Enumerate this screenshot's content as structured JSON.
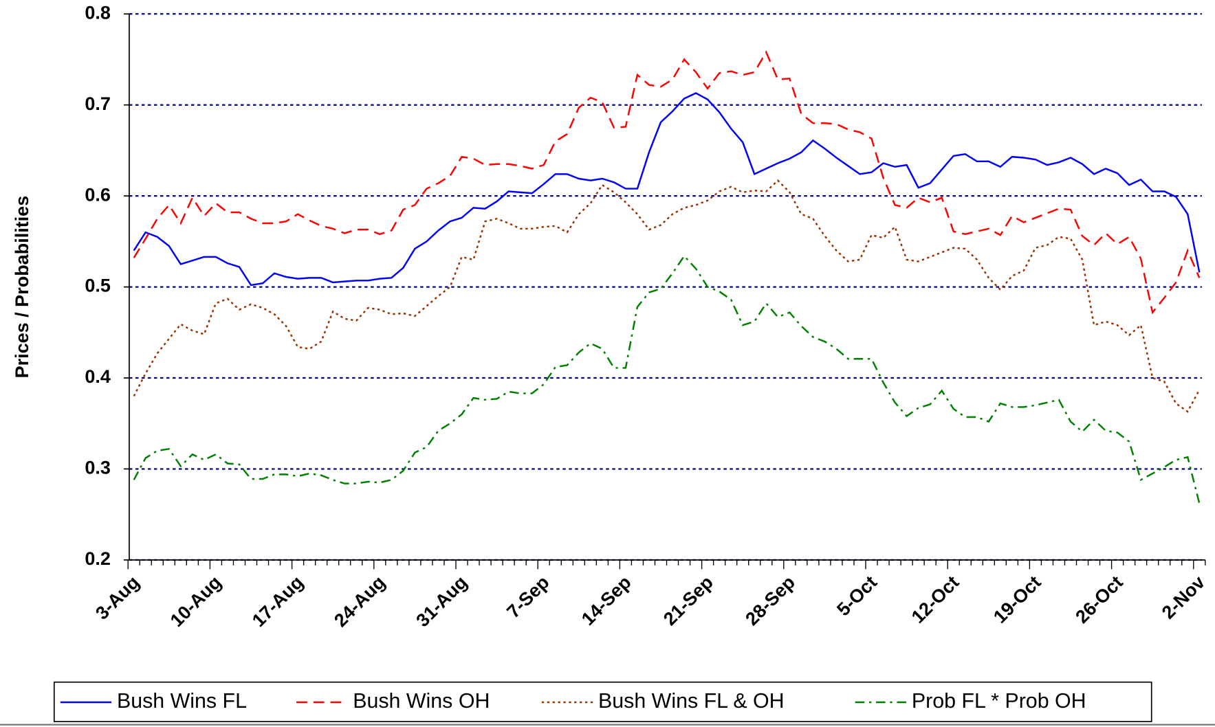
{
  "chart_data": {
    "type": "line",
    "y_label": "Prices / Probabilities",
    "categories": [
      "3-Aug",
      null,
      null,
      null,
      null,
      null,
      null,
      "10-Aug",
      null,
      null,
      null,
      null,
      null,
      null,
      "17-Aug",
      null,
      null,
      null,
      null,
      null,
      null,
      "24-Aug",
      null,
      null,
      null,
      null,
      null,
      null,
      "31-Aug",
      null,
      null,
      null,
      null,
      null,
      null,
      "7-Sep",
      null,
      null,
      null,
      null,
      null,
      null,
      "14-Sep",
      null,
      null,
      null,
      null,
      null,
      null,
      "21-Sep",
      null,
      null,
      null,
      null,
      null,
      null,
      "28-Sep",
      null,
      null,
      null,
      null,
      null,
      null,
      "5-Oct",
      null,
      null,
      null,
      null,
      null,
      null,
      "12-Oct",
      null,
      null,
      null,
      null,
      null,
      null,
      "19-Oct",
      null,
      null,
      null,
      null,
      null,
      null,
      "26-Oct",
      null,
      null,
      null,
      null,
      null,
      null,
      "2-Nov"
    ],
    "ylim": [
      0.2,
      0.8
    ],
    "yticks": [
      0.2,
      0.3,
      0.4,
      0.5,
      0.6,
      0.7,
      0.8
    ],
    "grid": true,
    "legend": "bottom",
    "series": [
      {
        "name": "Bush Wins FL",
        "color": "#0000ff",
        "dash": "solid",
        "values": [
          0.54,
          0.56,
          0.555,
          0.545,
          0.525,
          0.529,
          0.533,
          0.533,
          0.526,
          0.522,
          0.502,
          0.504,
          0.515,
          0.511,
          0.509,
          0.51,
          0.51,
          0.505,
          0.506,
          0.507,
          0.507,
          0.509,
          0.51,
          0.521,
          0.542,
          0.55,
          0.562,
          0.572,
          0.576,
          0.587,
          0.586,
          0.594,
          0.605,
          0.604,
          0.603,
          0.613,
          0.624,
          0.624,
          0.619,
          0.617,
          0.619,
          0.615,
          0.608,
          0.608,
          0.648,
          0.681,
          0.693,
          0.707,
          0.713,
          0.706,
          0.692,
          0.674,
          0.659,
          0.624,
          0.63,
          0.636,
          0.641,
          0.648,
          0.661,
          0.652,
          0.642,
          0.633,
          0.624,
          0.626,
          0.636,
          0.632,
          0.634,
          0.609,
          0.614,
          0.629,
          0.644,
          0.646,
          0.638,
          0.638,
          0.632,
          0.643,
          0.642,
          0.64,
          0.634,
          0.637,
          0.642,
          0.635,
          0.624,
          0.63,
          0.625,
          0.612,
          0.618,
          0.605,
          0.605,
          0.599,
          0.58,
          0.516
        ]
      },
      {
        "name": "Bush Wins OH",
        "color": "#ff0000",
        "dash": "dashed",
        "values": [
          0.532,
          0.553,
          0.575,
          0.59,
          0.57,
          0.598,
          0.578,
          0.592,
          0.582,
          0.582,
          0.575,
          0.57,
          0.57,
          0.572,
          0.58,
          0.573,
          0.567,
          0.564,
          0.559,
          0.563,
          0.563,
          0.558,
          0.562,
          0.585,
          0.59,
          0.608,
          0.614,
          0.622,
          0.643,
          0.641,
          0.634,
          0.635,
          0.635,
          0.633,
          0.63,
          0.634,
          0.66,
          0.668,
          0.697,
          0.708,
          0.703,
          0.675,
          0.676,
          0.733,
          0.722,
          0.72,
          0.728,
          0.75,
          0.736,
          0.718,
          0.735,
          0.737,
          0.733,
          0.736,
          0.758,
          0.728,
          0.729,
          0.69,
          0.68,
          0.68,
          0.679,
          0.673,
          0.67,
          0.663,
          0.62,
          0.59,
          0.587,
          0.598,
          0.593,
          0.598,
          0.561,
          0.558,
          0.561,
          0.564,
          0.557,
          0.578,
          0.571,
          0.576,
          0.581,
          0.586,
          0.585,
          0.556,
          0.546,
          0.559,
          0.547,
          0.555,
          0.531,
          0.472,
          0.488,
          0.505,
          0.54,
          0.51
        ]
      },
      {
        "name": "Bush Wins FL & OH",
        "color": "#993300",
        "dash": "dotted",
        "values": [
          0.38,
          0.405,
          0.427,
          0.443,
          0.459,
          0.452,
          0.448,
          0.482,
          0.487,
          0.475,
          0.481,
          0.477,
          0.47,
          0.457,
          0.434,
          0.432,
          0.44,
          0.473,
          0.465,
          0.463,
          0.477,
          0.475,
          0.47,
          0.471,
          0.468,
          0.479,
          0.49,
          0.5,
          0.533,
          0.53,
          0.572,
          0.575,
          0.57,
          0.564,
          0.564,
          0.566,
          0.567,
          0.56,
          0.58,
          0.592,
          0.612,
          0.604,
          0.593,
          0.58,
          0.563,
          0.568,
          0.58,
          0.587,
          0.59,
          0.595,
          0.605,
          0.61,
          0.604,
          0.606,
          0.605,
          0.617,
          0.604,
          0.58,
          0.575,
          0.556,
          0.54,
          0.528,
          0.53,
          0.557,
          0.554,
          0.566,
          0.53,
          0.528,
          0.533,
          0.538,
          0.543,
          0.542,
          0.53,
          0.51,
          0.497,
          0.512,
          0.518,
          0.543,
          0.546,
          0.555,
          0.553,
          0.53,
          0.458,
          0.462,
          0.458,
          0.447,
          0.458,
          0.4,
          0.396,
          0.372,
          0.363,
          0.387
        ]
      },
      {
        "name": "Prob FL * Prob OH",
        "color": "#008000",
        "dash": "dashdot",
        "values": [
          0.288,
          0.312,
          0.32,
          0.322,
          0.303,
          0.316,
          0.31,
          0.316,
          0.306,
          0.305,
          0.289,
          0.289,
          0.294,
          0.294,
          0.292,
          0.295,
          0.293,
          0.288,
          0.284,
          0.284,
          0.286,
          0.285,
          0.288,
          0.298,
          0.318,
          0.324,
          0.342,
          0.35,
          0.36,
          0.378,
          0.376,
          0.377,
          0.385,
          0.383,
          0.383,
          0.393,
          0.412,
          0.414,
          0.428,
          0.438,
          0.432,
          0.411,
          0.411,
          0.478,
          0.494,
          0.498,
          0.515,
          0.534,
          0.52,
          0.5,
          0.495,
          0.486,
          0.458,
          0.462,
          0.482,
          0.467,
          0.472,
          0.457,
          0.445,
          0.44,
          0.432,
          0.421,
          0.421,
          0.421,
          0.395,
          0.373,
          0.358,
          0.367,
          0.371,
          0.386,
          0.366,
          0.357,
          0.357,
          0.352,
          0.372,
          0.368,
          0.368,
          0.37,
          0.373,
          0.376,
          0.352,
          0.341,
          0.354,
          0.342,
          0.34,
          0.33,
          0.288,
          0.295,
          0.302,
          0.31,
          0.313,
          0.262
        ]
      }
    ]
  }
}
